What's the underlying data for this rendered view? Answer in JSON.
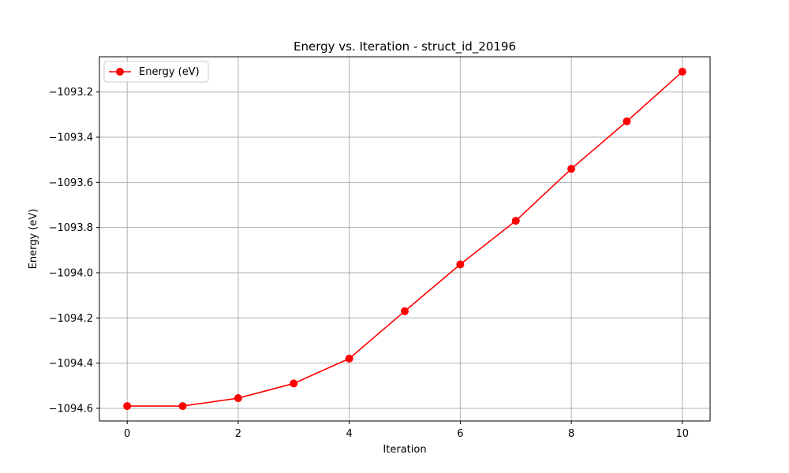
{
  "chart_data": {
    "type": "line",
    "title": "Energy vs. Iteration - struct_id_20196",
    "xlabel": "Iteration",
    "ylabel": "Energy (eV)",
    "x": [
      0,
      1,
      2,
      3,
      4,
      5,
      6,
      7,
      8,
      9,
      10
    ],
    "series": [
      {
        "name": "Energy (eV)",
        "color": "#ff0000",
        "marker": "circle",
        "values": [
          -1094.59,
          -1094.59,
          -1094.555,
          -1094.49,
          -1094.38,
          -1094.17,
          -1093.963,
          -1093.77,
          -1093.54,
          -1093.33,
          -1093.11
        ]
      }
    ],
    "xlim": [
      -0.5,
      10.5
    ],
    "ylim": [
      -1094.656,
      -1093.044
    ],
    "xticks": [
      0,
      2,
      4,
      6,
      8,
      10
    ],
    "xtick_labels": [
      "0",
      "2",
      "4",
      "6",
      "8",
      "10"
    ],
    "yticks": [
      -1094.6,
      -1094.4,
      -1094.2,
      -1094.0,
      -1093.8,
      -1093.6,
      -1093.4,
      -1093.2
    ],
    "ytick_labels": [
      "−1094.6",
      "−1094.4",
      "−1094.2",
      "−1094.0",
      "−1093.8",
      "−1093.6",
      "−1093.4",
      "−1093.2"
    ],
    "grid": true,
    "grid_color": "#b0b0b0",
    "legend_position": "top-left"
  }
}
